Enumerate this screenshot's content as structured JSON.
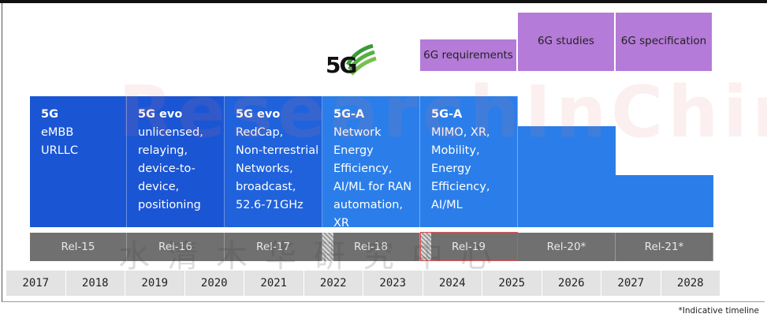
{
  "logo": {
    "text": "5G"
  },
  "watermark": {
    "latin": "ResearchInChina",
    "chinese": "水清木华研究中心"
  },
  "six_g": [
    {
      "label": "6G requirements"
    },
    {
      "label": "6G studies"
    },
    {
      "label": "6G specification"
    }
  ],
  "blocks": [
    {
      "title": "5G",
      "lines": "eMBB\nURLLC"
    },
    {
      "title": "5G evo",
      "lines": "unlicensed,\nrelaying,\ndevice-to-\ndevice,\npositioning"
    },
    {
      "title": "5G evo",
      "lines": "RedCap,\nNon-terrestrial\nNetworks,\nbroadcast,\n52.6-71GHz"
    },
    {
      "title": "5G-A",
      "lines": "Network\nEnergy\nEfficiency,\nAI/ML for RAN\nautomation, XR"
    },
    {
      "title": "5G-A",
      "lines": "MIMO, XR,\nMobility,\nEnergy\nEfficiency,\nAI/ML"
    }
  ],
  "releases": [
    "Rel-15",
    "Rel-16",
    "Rel-17",
    "Rel-18",
    "Rel-19",
    "Rel-20*",
    "Rel-21*"
  ],
  "years": [
    "2017",
    "2018",
    "2019",
    "2020",
    "2021",
    "2022",
    "2023",
    "2024",
    "2025",
    "2026",
    "2027",
    "2028"
  ],
  "footnote": "*Indicative timeline",
  "colors": {
    "blue_dark": "#1a55d4",
    "blue_light": "#2b7ee9",
    "purple": "#b57bd8",
    "release_gray": "#707070",
    "year_gray": "#e3e3e3",
    "highlight": "#e05050"
  }
}
